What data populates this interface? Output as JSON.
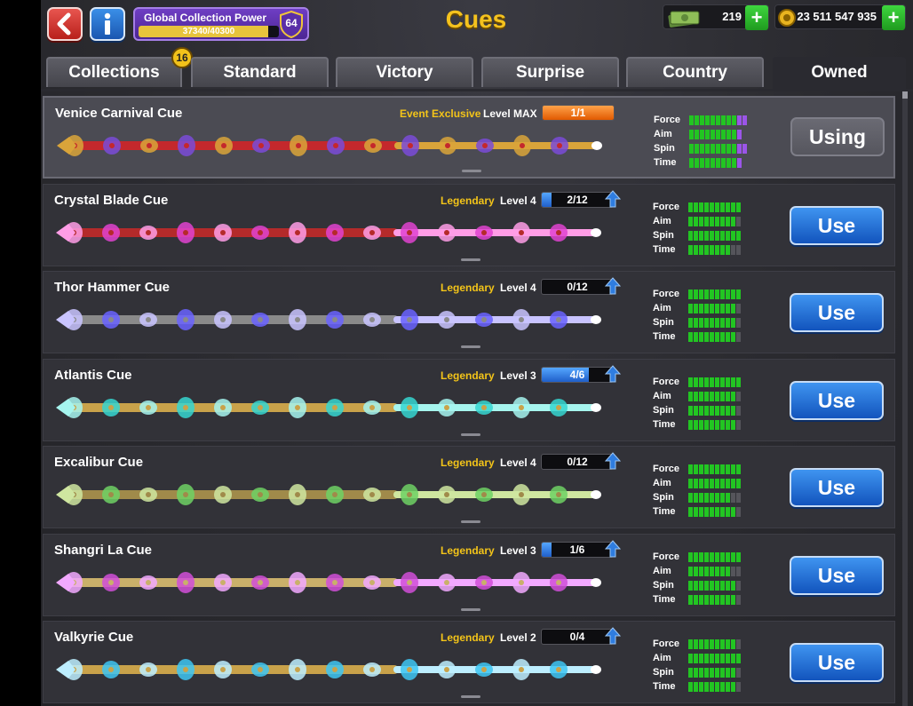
{
  "header": {
    "title": "Cues",
    "collection_power": {
      "label": "Global Collection Power",
      "value_text": "37340/40300",
      "progress": 0.927,
      "level": "64"
    },
    "cash": "219",
    "coins": "23 511 547 935"
  },
  "tabs": [
    {
      "label": "Collections",
      "badge": "16"
    },
    {
      "label": "Standard"
    },
    {
      "label": "Victory"
    },
    {
      "label": "Surprise"
    },
    {
      "label": "Country"
    },
    {
      "label": "Owned",
      "active": true
    }
  ],
  "stat_labels": [
    "Force",
    "Aim",
    "Spin",
    "Time"
  ],
  "cues": [
    {
      "name": "Venice Carnival Cue",
      "rarity": "Event Exclusive",
      "level": "Level MAX",
      "progress_text": "1/1",
      "progress": 1.0,
      "bar_color": "orange",
      "upgrade_arrow": false,
      "button": "Using",
      "stats": {
        "force": [
          9,
          2
        ],
        "aim": [
          9,
          1
        ],
        "spin": [
          9,
          2
        ],
        "time": [
          9,
          1
        ]
      },
      "colors": [
        "#7a4bd8",
        "#d9a43a",
        "#c4282c"
      ]
    },
    {
      "name": "Crystal Blade Cue",
      "rarity": "Legendary",
      "level": "Level 4",
      "progress_text": "2/12",
      "progress": 0.167,
      "bar_color": "blue",
      "upgrade_arrow": true,
      "button": "Use",
      "stats": {
        "force": [
          10,
          0
        ],
        "aim": [
          9,
          0
        ],
        "spin": [
          10,
          0
        ],
        "time": [
          8,
          0
        ]
      },
      "colors": [
        "#e043d0",
        "#ff9de6",
        "#b42a2a"
      ]
    },
    {
      "name": "Thor Hammer Cue",
      "rarity": "Legendary",
      "level": "Level 4",
      "progress_text": "0/12",
      "progress": 0.0,
      "bar_color": "blue",
      "upgrade_arrow": true,
      "button": "Use",
      "stats": {
        "force": [
          10,
          0
        ],
        "aim": [
          9,
          0
        ],
        "spin": [
          9,
          0
        ],
        "time": [
          9,
          0
        ]
      },
      "colors": [
        "#6a63ff",
        "#c9c4ff",
        "#8a8a8a"
      ]
    },
    {
      "name": "Atlantis Cue",
      "rarity": "Legendary",
      "level": "Level 3",
      "progress_text": "4/6",
      "progress": 0.667,
      "bar_color": "blue",
      "upgrade_arrow": true,
      "button": "Use",
      "stats": {
        "force": [
          10,
          0
        ],
        "aim": [
          9,
          0
        ],
        "spin": [
          9,
          0
        ],
        "time": [
          9,
          0
        ]
      },
      "colors": [
        "#36d6d0",
        "#a6f5ee",
        "#c9a24a"
      ]
    },
    {
      "name": "Excalibur Cue",
      "rarity": "Legendary",
      "level": "Level 4",
      "progress_text": "0/12",
      "progress": 0.0,
      "bar_color": "blue",
      "upgrade_arrow": true,
      "button": "Use",
      "stats": {
        "force": [
          10,
          0
        ],
        "aim": [
          10,
          0
        ],
        "spin": [
          8,
          0
        ],
        "time": [
          9,
          0
        ]
      },
      "colors": [
        "#6fd164",
        "#cfe6a0",
        "#a08a4a"
      ]
    },
    {
      "name": "Shangri La Cue",
      "rarity": "Legendary",
      "level": "Level 3",
      "progress_text": "1/6",
      "progress": 0.167,
      "bar_color": "blue",
      "upgrade_arrow": true,
      "button": "Use",
      "stats": {
        "force": [
          10,
          0
        ],
        "aim": [
          8,
          0
        ],
        "spin": [
          9,
          0
        ],
        "time": [
          9,
          0
        ]
      },
      "colors": [
        "#d14fd8",
        "#f2a9ff",
        "#c9b06a"
      ]
    },
    {
      "name": "Valkyrie Cue",
      "rarity": "Legendary",
      "level": "Level 2",
      "progress_text": "0/4",
      "progress": 0.0,
      "bar_color": "blue",
      "upgrade_arrow": true,
      "button": "Use",
      "stats": {
        "force": [
          9,
          0
        ],
        "aim": [
          10,
          0
        ],
        "spin": [
          9,
          0
        ],
        "time": [
          9,
          0
        ]
      },
      "colors": [
        "#3ec6f2",
        "#bdeeff",
        "#c9a24a"
      ]
    }
  ]
}
